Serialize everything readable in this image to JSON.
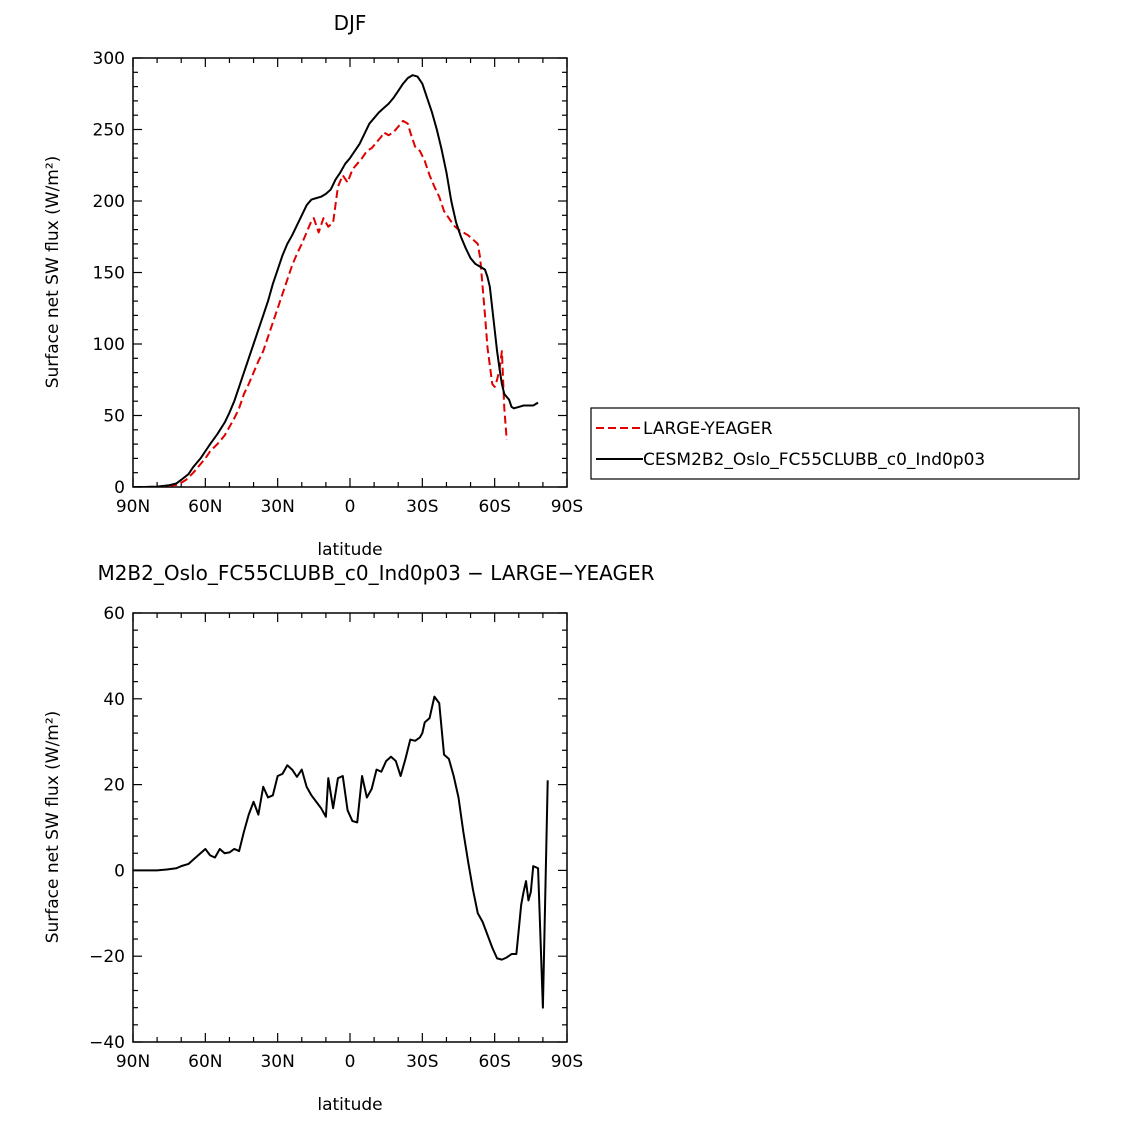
{
  "chart_data": [
    {
      "type": "line",
      "title": "DJF",
      "xlabel": "latitude",
      "ylabel": "Surface net SW flux (W/m²)",
      "xlim": [
        90,
        -90
      ],
      "ylim": [
        0,
        300
      ],
      "xticks": [
        90,
        60,
        30,
        0,
        -30,
        -60,
        -90
      ],
      "xtick_labels": [
        "90N",
        "60N",
        "30N",
        "0",
        "30S",
        "60S",
        "90S"
      ],
      "yticks": [
        0,
        50,
        100,
        150,
        200,
        250,
        300
      ],
      "ytick_labels": [
        "0",
        "50",
        "100",
        "150",
        "200",
        "250",
        "300"
      ],
      "legend_position": "right",
      "grid": false,
      "series": [
        {
          "name": "LARGE-YEAGER",
          "color": "#e00000",
          "style": "dashed",
          "points": [
            [
              90,
              0
            ],
            [
              85,
              0
            ],
            [
              80,
              0.2
            ],
            [
              75,
              0.8
            ],
            [
              72,
              1.5
            ],
            [
              70,
              3
            ],
            [
              68,
              5
            ],
            [
              65,
              10
            ],
            [
              62,
              16
            ],
            [
              60,
              20
            ],
            [
              58,
              25
            ],
            [
              55,
              30
            ],
            [
              52,
              36
            ],
            [
              50,
              42
            ],
            [
              48,
              48
            ],
            [
              46,
              55
            ],
            [
              44,
              65
            ],
            [
              42,
              72
            ],
            [
              40,
              80
            ],
            [
              38,
              88
            ],
            [
              36,
              95
            ],
            [
              34,
              105
            ],
            [
              32,
              115
            ],
            [
              30,
              125
            ],
            [
              28,
              135
            ],
            [
              26,
              145
            ],
            [
              24,
              155
            ],
            [
              22,
              163
            ],
            [
              20,
              170
            ],
            [
              18,
              178
            ],
            [
              16,
              186
            ],
            [
              15,
              188
            ],
            [
              13,
              178
            ],
            [
              11,
              188
            ],
            [
              9,
              182
            ],
            [
              7,
              185
            ],
            [
              5,
              210
            ],
            [
              3,
              218
            ],
            [
              1,
              213
            ],
            [
              -1,
              222
            ],
            [
              -3,
              226
            ],
            [
              -5,
              230
            ],
            [
              -7,
              235
            ],
            [
              -9,
              237
            ],
            [
              -11,
              241
            ],
            [
              -13,
              245
            ],
            [
              -14,
              248
            ],
            [
              -16,
              246
            ],
            [
              -18,
              248
            ],
            [
              -20,
              252
            ],
            [
              -22,
              256
            ],
            [
              -24,
              254
            ],
            [
              -25,
              248
            ],
            [
              -27,
              238
            ],
            [
              -29,
              235
            ],
            [
              -31,
              228
            ],
            [
              -33,
              218
            ],
            [
              -35,
              210
            ],
            [
              -37,
              203
            ],
            [
              -39,
              193
            ],
            [
              -41,
              188
            ],
            [
              -43,
              183
            ],
            [
              -45,
              180
            ],
            [
              -47,
              178
            ],
            [
              -49,
              176
            ],
            [
              -51,
              173
            ],
            [
              -53,
              170
            ],
            [
              -54,
              160
            ],
            [
              -55,
              140
            ],
            [
              -56,
              120
            ],
            [
              -57,
              98
            ],
            [
              -58,
              85
            ],
            [
              -59,
              72
            ],
            [
              -60,
              70
            ],
            [
              -61,
              75
            ],
            [
              -62,
              82
            ],
            [
              -63,
              95
            ],
            [
              -64,
              55
            ],
            [
              -65,
              33
            ]
          ]
        },
        {
          "name": "CESM2B2_Oslo_FC55CLUBB_c0_Ind0p03",
          "color": "#000000",
          "style": "solid",
          "points": [
            [
              90,
              0
            ],
            [
              85,
              0
            ],
            [
              80,
              0.3
            ],
            [
              75,
              1.2
            ],
            [
              72,
              2.5
            ],
            [
              70,
              5
            ],
            [
              67,
              9
            ],
            [
              65,
              14
            ],
            [
              62,
              20
            ],
            [
              60,
              25
            ],
            [
              58,
              30
            ],
            [
              55,
              37
            ],
            [
              52,
              45
            ],
            [
              50,
              52
            ],
            [
              48,
              60
            ],
            [
              46,
              70
            ],
            [
              44,
              80
            ],
            [
              42,
              90
            ],
            [
              40,
              100
            ],
            [
              38,
              110
            ],
            [
              36,
              120
            ],
            [
              34,
              130
            ],
            [
              32,
              142
            ],
            [
              30,
              152
            ],
            [
              28,
              162
            ],
            [
              26,
              170
            ],
            [
              24,
              176
            ],
            [
              22,
              183
            ],
            [
              20,
              190
            ],
            [
              18,
              197
            ],
            [
              16,
              201
            ],
            [
              14,
              202
            ],
            [
              12,
              203
            ],
            [
              10,
              205
            ],
            [
              8,
              208
            ],
            [
              6,
              215
            ],
            [
              4,
              220
            ],
            [
              2,
              226
            ],
            [
              0,
              230
            ],
            [
              -2,
              235
            ],
            [
              -4,
              240
            ],
            [
              -6,
              247
            ],
            [
              -8,
              254
            ],
            [
              -10,
              258
            ],
            [
              -12,
              262
            ],
            [
              -14,
              265
            ],
            [
              -16,
              268
            ],
            [
              -18,
              272
            ],
            [
              -20,
              277
            ],
            [
              -22,
              282
            ],
            [
              -24,
              286
            ],
            [
              -26,
              288
            ],
            [
              -28,
              287
            ],
            [
              -30,
              282
            ],
            [
              -32,
              272
            ],
            [
              -34,
              262
            ],
            [
              -36,
              250
            ],
            [
              -38,
              236
            ],
            [
              -40,
              220
            ],
            [
              -42,
              200
            ],
            [
              -44,
              185
            ],
            [
              -46,
              175
            ],
            [
              -48,
              167
            ],
            [
              -50,
              160
            ],
            [
              -52,
              156
            ],
            [
              -54,
              154
            ],
            [
              -56,
              152
            ],
            [
              -57,
              147
            ],
            [
              -58,
              140
            ],
            [
              -59,
              125
            ],
            [
              -60,
              110
            ],
            [
              -61,
              95
            ],
            [
              -62,
              83
            ],
            [
              -63,
              72
            ],
            [
              -64,
              65
            ],
            [
              -65,
              63
            ],
            [
              -66,
              61
            ],
            [
              -67,
              56
            ],
            [
              -68,
              55
            ],
            [
              -70,
              56
            ],
            [
              -72,
              57
            ],
            [
              -74,
              57
            ],
            [
              -76,
              57
            ],
            [
              -78,
              59
            ]
          ]
        }
      ]
    },
    {
      "type": "line",
      "title": "M2B2_Oslo_FC55CLUBB_c0_Ind0p03 − LARGE−YEAGER",
      "xlabel": "latitude",
      "ylabel": "Surface net SW flux (W/m²)",
      "xlim": [
        90,
        -90
      ],
      "ylim": [
        -40,
        60
      ],
      "xticks": [
        90,
        60,
        30,
        0,
        -30,
        -60,
        -90
      ],
      "xtick_labels": [
        "90N",
        "60N",
        "30N",
        "0",
        "30S",
        "60S",
        "90S"
      ],
      "yticks": [
        -40,
        -20,
        0,
        20,
        40,
        60
      ],
      "ytick_labels": [
        "−40",
        "−20",
        "0",
        "20",
        "40",
        "60"
      ],
      "grid": false,
      "series": [
        {
          "color": "#000000",
          "style": "solid",
          "points": [
            [
              90,
              0
            ],
            [
              85,
              0
            ],
            [
              80,
              0
            ],
            [
              76,
              0.2
            ],
            [
              72,
              0.5
            ],
            [
              70,
              1
            ],
            [
              67,
              1.5
            ],
            [
              65,
              2.5
            ],
            [
              62,
              4
            ],
            [
              60,
              5
            ],
            [
              58,
              3.5
            ],
            [
              56,
              3
            ],
            [
              54,
              5
            ],
            [
              52,
              4
            ],
            [
              50,
              4.2
            ],
            [
              48,
              5
            ],
            [
              46,
              4.5
            ],
            [
              44,
              9
            ],
            [
              42,
              13
            ],
            [
              40,
              16
            ],
            [
              38,
              13
            ],
            [
              36,
              19.5
            ],
            [
              34,
              17
            ],
            [
              32,
              17.5
            ],
            [
              30,
              22
            ],
            [
              28,
              22.5
            ],
            [
              26,
              24.5
            ],
            [
              24,
              23.5
            ],
            [
              22,
              21.8
            ],
            [
              20,
              23.5
            ],
            [
              18,
              19.5
            ],
            [
              16,
              17.5
            ],
            [
              14,
              16
            ],
            [
              12,
              14.5
            ],
            [
              10,
              12.5
            ],
            [
              9,
              21.5
            ],
            [
              7,
              14.5
            ],
            [
              5,
              21.5
            ],
            [
              3,
              22
            ],
            [
              1,
              14
            ],
            [
              -1,
              11.5
            ],
            [
              -3,
              11.2
            ],
            [
              -5,
              22
            ],
            [
              -7,
              17
            ],
            [
              -9,
              19
            ],
            [
              -11,
              23.5
            ],
            [
              -13,
              23
            ],
            [
              -15,
              25.5
            ],
            [
              -17,
              26.5
            ],
            [
              -19,
              25.5
            ],
            [
              -21,
              22
            ],
            [
              -23,
              26
            ],
            [
              -25,
              30.5
            ],
            [
              -27,
              30.2
            ],
            [
              -29,
              31
            ],
            [
              -30,
              32
            ],
            [
              -31,
              34.5
            ],
            [
              -33,
              35.5
            ],
            [
              -35,
              40.5
            ],
            [
              -37,
              39
            ],
            [
              -39,
              27
            ],
            [
              -41,
              26
            ],
            [
              -43,
              22
            ],
            [
              -45,
              17
            ],
            [
              -47,
              9
            ],
            [
              -49,
              2
            ],
            [
              -51,
              -4.5
            ],
            [
              -53,
              -10
            ],
            [
              -55,
              -12
            ],
            [
              -57,
              -15
            ],
            [
              -59,
              -18
            ],
            [
              -61,
              -20.5
            ],
            [
              -63,
              -20.8
            ],
            [
              -65,
              -20.3
            ],
            [
              -67,
              -19.5
            ],
            [
              -69,
              -19.5
            ],
            [
              -71,
              -8
            ],
            [
              -72,
              -5
            ],
            [
              -73,
              -2.5
            ],
            [
              -74,
              -7
            ],
            [
              -75,
              -5
            ],
            [
              -76,
              1
            ],
            [
              -78,
              0.5
            ],
            [
              -80,
              -32
            ],
            [
              -82,
              21
            ]
          ]
        }
      ]
    }
  ]
}
